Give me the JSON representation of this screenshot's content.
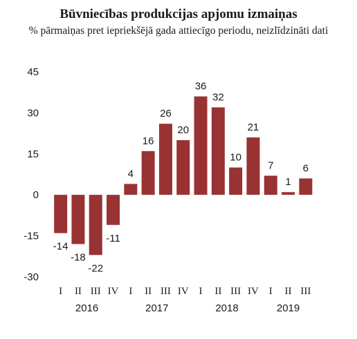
{
  "chart_data": {
    "type": "bar",
    "title": "Būvniecības produkcijas apjomu izmaiņas",
    "subtitle": "% pārmaiņas pret iepriekšējā gada attiecīgo periodu, neizlīdzināti dati",
    "categories": [
      "I",
      "II",
      "III",
      "IV",
      "I",
      "II",
      "III",
      "IV",
      "I",
      "II",
      "III",
      "IV",
      "I",
      "II",
      "III"
    ],
    "year_groups": [
      {
        "label": "2016",
        "start": 0,
        "end": 3
      },
      {
        "label": "2017",
        "start": 4,
        "end": 7
      },
      {
        "label": "2018",
        "start": 8,
        "end": 11
      },
      {
        "label": "2019",
        "start": 12,
        "end": 14
      }
    ],
    "series": [
      {
        "values": [
          -14,
          -18,
          -22,
          -11,
          4,
          16,
          26,
          20,
          36,
          32,
          10,
          21,
          7,
          1,
          6
        ]
      }
    ],
    "value_labels": [
      "-14",
      "-18",
      "-22",
      "-11",
      "4",
      "16",
      "26",
      "20",
      "36",
      "32",
      "10",
      "21",
      "7",
      "1",
      "6"
    ],
    "ylim": [
      -30,
      45
    ],
    "yticks": [
      45,
      30,
      15,
      0,
      -15,
      -30
    ],
    "grid": false,
    "bar_color": "#993333"
  }
}
